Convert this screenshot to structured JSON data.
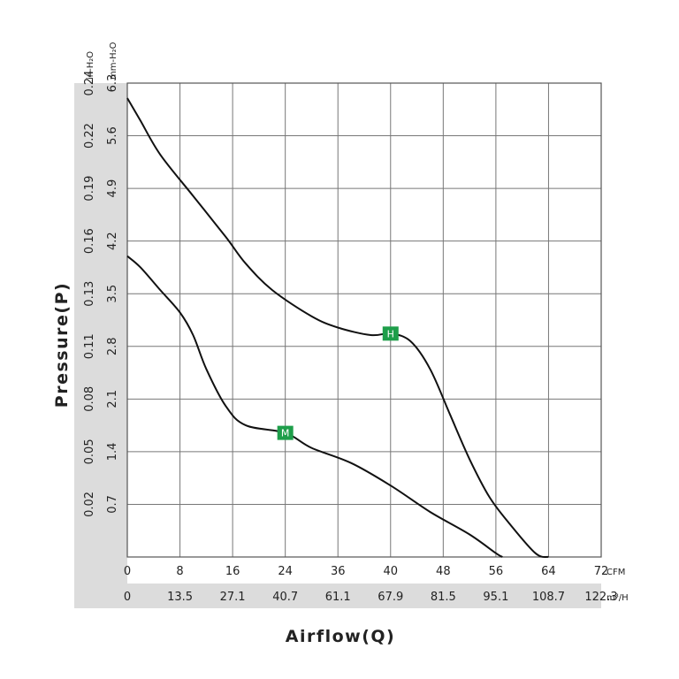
{
  "chart_data": {
    "type": "line",
    "title": "",
    "xlabel": "Airflow(Q)",
    "ylabel": "Pressure(P)",
    "x_primary": {
      "unit": "CFM",
      "ticks": [
        "0",
        "8",
        "16",
        "24",
        "36",
        "40",
        "48",
        "56",
        "64",
        "72"
      ],
      "range": [
        0,
        72
      ]
    },
    "x_secondary": {
      "unit": "m³/H",
      "ticks": [
        "0",
        "13.5",
        "27.1",
        "40.7",
        "61.1",
        "67.9",
        "81.5",
        "95.1",
        "108.7",
        "122.3"
      ]
    },
    "y_primary": {
      "unit": "mm-H₂O",
      "ticks": [
        "0.7",
        "1.4",
        "2.1",
        "2.8",
        "3.5",
        "4.2",
        "4.9",
        "5.6",
        "6.3"
      ],
      "range": [
        0,
        6.3
      ]
    },
    "y_secondary": {
      "unit": "in-H₂O",
      "ticks": [
        "0.02",
        "0.05",
        "0.08",
        "0.11",
        "0.13",
        "0.16",
        "0.19",
        "0.22",
        "0.24"
      ]
    },
    "grid": true,
    "series": [
      {
        "name": "H",
        "marker_x": 40,
        "marker_y": 2.97,
        "points": [
          [
            0,
            6.1
          ],
          [
            2,
            5.8
          ],
          [
            5,
            5.35
          ],
          [
            10,
            4.8
          ],
          [
            15,
            4.25
          ],
          [
            18,
            3.9
          ],
          [
            22,
            3.55
          ],
          [
            28,
            3.2
          ],
          [
            32,
            3.05
          ],
          [
            37,
            2.95
          ],
          [
            40,
            2.97
          ],
          [
            43,
            2.87
          ],
          [
            46,
            2.5
          ],
          [
            49,
            1.9
          ],
          [
            52,
            1.3
          ],
          [
            55,
            0.8
          ],
          [
            58,
            0.45
          ],
          [
            62,
            0.05
          ],
          [
            64,
            0.0
          ]
        ]
      },
      {
        "name": "M",
        "marker_x": 24,
        "marker_y": 1.65,
        "points": [
          [
            0,
            4.0
          ],
          [
            2,
            3.85
          ],
          [
            5,
            3.55
          ],
          [
            8,
            3.25
          ],
          [
            10,
            2.95
          ],
          [
            12,
            2.5
          ],
          [
            15,
            2.0
          ],
          [
            18,
            1.75
          ],
          [
            24,
            1.65
          ],
          [
            28,
            1.45
          ],
          [
            34,
            1.25
          ],
          [
            40,
            0.95
          ],
          [
            46,
            0.6
          ],
          [
            52,
            0.3
          ],
          [
            56,
            0.05
          ],
          [
            57,
            0.0
          ]
        ]
      }
    ],
    "colors": {
      "marker": "#1e9e4a",
      "curve": "#111111",
      "band": "#dcdcdc"
    }
  }
}
